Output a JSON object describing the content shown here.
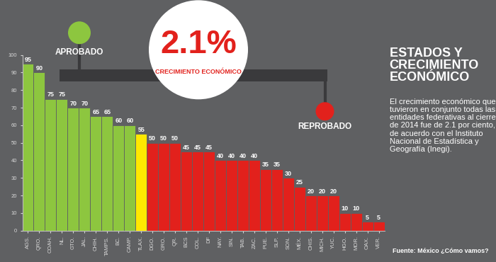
{
  "chart_data": {
    "type": "bar",
    "title": "ESTADOS Y CRECIMIENTO ECONÓMICO",
    "subtitle": "El crecimiento económico que tuvieron en conjunto todas las entidades federativas al cierre de 2014 fue de 2.1 por ciento, de acuerdo con el Instituto Nacional de Estadística y Geografía (Inegi).",
    "source": "Fuente: México ¿Cómo vamos?",
    "annotations": [
      "2.1%",
      "CRECIMIENTO ECONÓMICO",
      "APROBADO",
      "REPROBADO"
    ],
    "categories": [
      "AGS.",
      "QRO.",
      "COAH.",
      "NL.",
      "GTO.",
      "JAL.",
      "CHIH.",
      "TAMPS.",
      "BC.",
      "CAMP.",
      "TLAX.",
      "DGO.",
      "GRO.",
      "QR.",
      "BCS",
      "COL.",
      "DF",
      "NAY.",
      "SIN.",
      "TAB.",
      "ZAC.",
      "PUE.",
      "SLP.",
      "SON.",
      "MÉX.",
      "CHIS.",
      "MICH.",
      "YUC.",
      "HGO.",
      "MOR.",
      "OAX.",
      "VER."
    ],
    "values": [
      95,
      90,
      75,
      75,
      70,
      70,
      65,
      65,
      60,
      60,
      55,
      50,
      50,
      50,
      45,
      45,
      45,
      40,
      40,
      40,
      40,
      35,
      35,
      30,
      25,
      20,
      20,
      20,
      10,
      10,
      5,
      5
    ],
    "colors": [
      "#8dc63f",
      "#8dc63f",
      "#8dc63f",
      "#8dc63f",
      "#8dc63f",
      "#8dc63f",
      "#8dc63f",
      "#8dc63f",
      "#8dc63f",
      "#8dc63f",
      "#ffe800",
      "#e2211c",
      "#e2211c",
      "#e2211c",
      "#e2211c",
      "#e2211c",
      "#e2211c",
      "#e2211c",
      "#e2211c",
      "#e2211c",
      "#e2211c",
      "#e2211c",
      "#e2211c",
      "#e2211c",
      "#e2211c",
      "#e2211c",
      "#e2211c",
      "#e2211c",
      "#e2211c",
      "#e2211c",
      "#e2211c",
      "#e2211c"
    ],
    "ylim": [
      0,
      100
    ],
    "yticks": [
      0,
      10,
      20,
      30,
      40,
      50,
      60,
      70,
      80,
      90,
      100
    ],
    "data_labels": true,
    "grid": false
  }
}
